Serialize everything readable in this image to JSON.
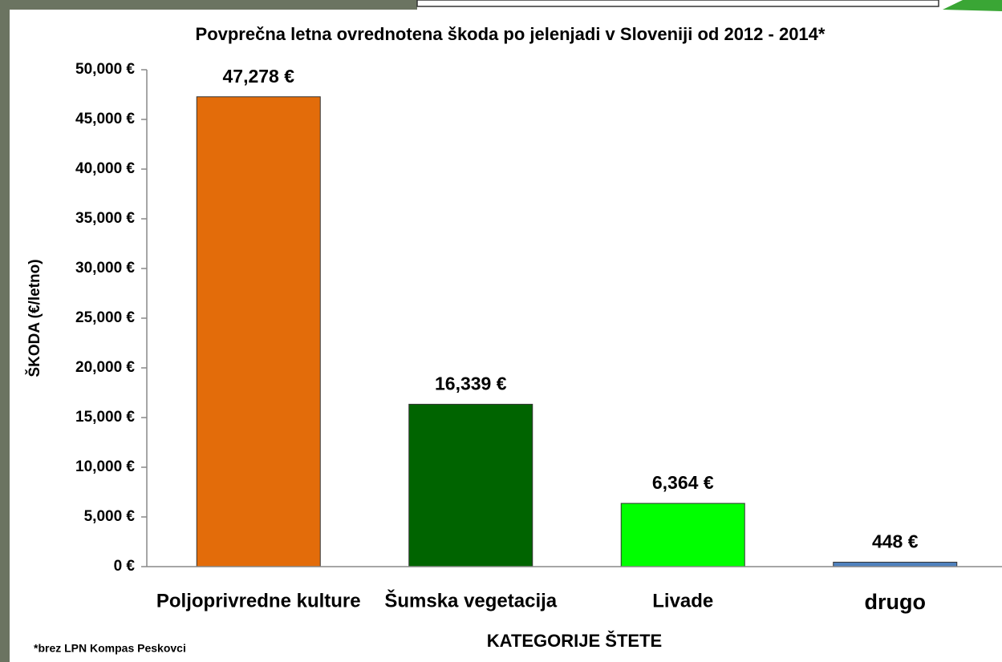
{
  "chart_data": {
    "type": "bar",
    "title": "Povprečna letna ovrednotena škoda po jelenjadi v Sloveniji od 2012 - 2014*",
    "y_label": "ŠKODA (€/letno)",
    "x_label": "KATEGORIJE ŠTETE",
    "footnote": "*brez LPN Kompas Peskovci",
    "categories": [
      "Poljoprivredne kulture",
      "Šumska vegetacija",
      "Livade",
      "drugo"
    ],
    "values": [
      47278,
      16339,
      6364,
      448
    ],
    "value_labels": [
      "47,278 €",
      "16,339 €",
      "6,364 €",
      "448 €"
    ],
    "colors": [
      "#e36c0a",
      "#006400",
      "#00ff00",
      "#4f81bd"
    ],
    "ylim": [
      0,
      50000
    ],
    "yticks": [
      {
        "value": 0,
        "label": "0 €"
      },
      {
        "value": 5000,
        "label": "5,000 €"
      },
      {
        "value": 10000,
        "label": "10,000 €"
      },
      {
        "value": 15000,
        "label": "15,000 €"
      },
      {
        "value": 20000,
        "label": "20,000 €"
      },
      {
        "value": 25000,
        "label": "25,000 €"
      },
      {
        "value": 30000,
        "label": "30,000 €"
      },
      {
        "value": 35000,
        "label": "35,000 €"
      },
      {
        "value": 40000,
        "label": "40,000 €"
      },
      {
        "value": 45000,
        "label": "45,000 €"
      },
      {
        "value": 50000,
        "label": "50,000 €"
      }
    ],
    "grid": false
  }
}
